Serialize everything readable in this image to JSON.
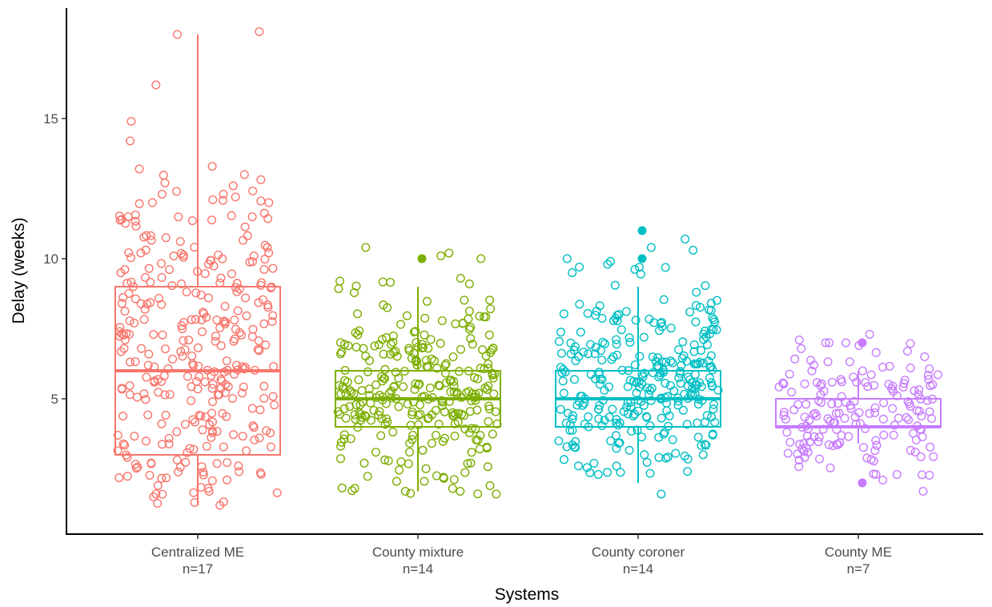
{
  "chart_data": {
    "type": "boxplot",
    "xlabel": "Systems",
    "ylabel": "Delay (weeks)",
    "ylim": [
      0.7,
      18.6
    ],
    "yticks": [
      5,
      10,
      15
    ],
    "grid": false,
    "legend": "none",
    "categories": [
      {
        "name": "Centralized ME",
        "n_label": "n=17",
        "color": "#F8766D"
      },
      {
        "name": "County mixture",
        "n_label": "n=14",
        "color": "#7CAE00"
      },
      {
        "name": "County coroner",
        "n_label": "n=14",
        "color": "#00BFC4"
      },
      {
        "name": "County ME",
        "n_label": "n=7",
        "color": "#C77CFF"
      }
    ],
    "boxes": [
      {
        "whisker_low": 1.2,
        "q1": 3,
        "median": 6,
        "q3": 9,
        "whisker_high": 18
      },
      {
        "whisker_low": 1.7,
        "q1": 4,
        "median": 5,
        "q3": 6,
        "whisker_high": 9
      },
      {
        "whisker_low": 2.0,
        "q1": 4,
        "median": 5,
        "q3": 6,
        "whisker_high": 9
      },
      {
        "whisker_low": 3.4,
        "q1": 4,
        "median": 4,
        "q3": 5,
        "whisker_high": 6
      }
    ],
    "outliers": [
      {
        "values": []
      },
      {
        "values": [
          10
        ]
      },
      {
        "values": [
          10,
          11
        ]
      },
      {
        "values": [
          2,
          7
        ]
      }
    ],
    "points": [
      {
        "count": 330,
        "notable": [
          18.1,
          18.0,
          16.2,
          14.9,
          14.2,
          13.2,
          13.0,
          12.7,
          12.6,
          12.4,
          12.3,
          12.3,
          12.2,
          12.1,
          12.0,
          12.0,
          1.2,
          1.3,
          1.5
        ]
      },
      {
        "count": 300,
        "notable": [
          10.4,
          10.2,
          10.1,
          10.0,
          9.3,
          9.2,
          9.1,
          1.6,
          1.7,
          1.7,
          1.8,
          1.9,
          2.2
        ]
      },
      {
        "count": 300,
        "notable": [
          10.7,
          10.4,
          10.3,
          10.0,
          9.9,
          9.8,
          9.7,
          9.5,
          1.6,
          2.3,
          2.6,
          2.7
        ]
      },
      {
        "count": 170,
        "notable": [
          7.3,
          7.1,
          7.0,
          7.0,
          6.9,
          6.7,
          6.5,
          6.2,
          6.1,
          2.1,
          1.7,
          2.3
        ]
      }
    ]
  }
}
